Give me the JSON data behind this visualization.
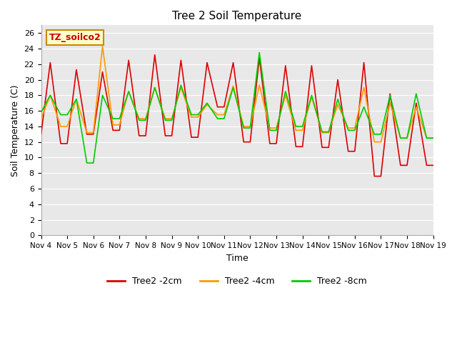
{
  "title": "Tree 2 Soil Temperature",
  "xlabel": "Time",
  "ylabel": "Soil Temperature (C)",
  "ylim": [
    0,
    27
  ],
  "yticks": [
    0,
    2,
    4,
    6,
    8,
    10,
    12,
    14,
    16,
    18,
    20,
    22,
    24,
    26
  ],
  "xtick_labels": [
    "Nov 4",
    "Nov 5",
    "Nov 6",
    "Nov 7",
    "Nov 8",
    "Nov 9",
    "Nov 10",
    "Nov 11",
    "Nov 12",
    "Nov 13",
    "Nov 14",
    "Nov 15",
    "Nov 16",
    "Nov 17",
    "Nov 18",
    "Nov 19"
  ],
  "annotation_text": "TZ_soilco2",
  "annotation_bg": "#ffffcc",
  "annotation_border": "#cc8800",
  "colors": {
    "2cm": "#dd0000",
    "4cm": "#ff9900",
    "8cm": "#00cc00"
  },
  "legend_labels": [
    "Tree2 -2cm",
    "Tree2 -4cm",
    "Tree2 -8cm"
  ],
  "background_color": "#e8e8e8",
  "line_width": 1.2
}
